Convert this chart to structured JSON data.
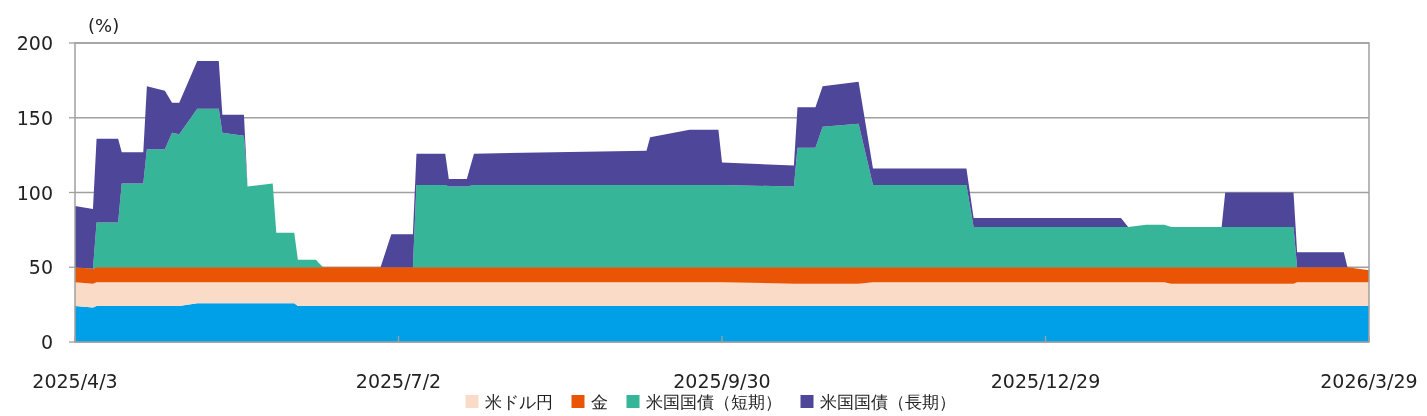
{
  "chart_data": {
    "type": "area",
    "stacked": true,
    "ylabel": "(%)",
    "grid": "y",
    "legend": "bottom",
    "xlim": [
      "2025-04-03",
      "2026-03-29"
    ],
    "xticks": [
      {
        "value": "2025-04-03",
        "label": "2025/4/3"
      },
      {
        "value": "2025-07-02",
        "label": "2025/7/2"
      },
      {
        "value": "2025-09-30",
        "label": "2025/9/30"
      },
      {
        "value": "2025-12-29",
        "label": "2025/12/29"
      },
      {
        "value": "2026-03-29",
        "label": "2026/3/29"
      }
    ],
    "ylim": [
      0,
      200
    ],
    "yticks": [
      0,
      50,
      100,
      150,
      200
    ],
    "x": [
      "2025-04-03",
      "2025-04-08",
      "2025-04-09",
      "2025-04-15",
      "2025-04-16",
      "2025-04-22",
      "2025-04-23",
      "2025-04-28",
      "2025-04-30",
      "2025-05-02",
      "2025-05-07",
      "2025-05-13",
      "2025-05-14",
      "2025-05-20",
      "2025-05-21",
      "2025-05-28",
      "2025-05-29",
      "2025-06-03",
      "2025-06-04",
      "2025-06-09",
      "2025-06-11",
      "2025-06-27",
      "2025-06-30",
      "2025-07-06",
      "2025-07-07",
      "2025-07-15",
      "2025-07-16",
      "2025-07-21",
      "2025-07-23",
      "2025-09-09",
      "2025-09-10",
      "2025-09-21",
      "2025-09-29",
      "2025-09-30",
      "2025-10-20",
      "2025-10-21",
      "2025-10-26",
      "2025-10-28",
      "2025-11-07",
      "2025-11-11",
      "2025-12-07",
      "2025-12-09",
      "2026-01-19",
      "2026-01-21",
      "2026-01-26",
      "2026-01-31",
      "2026-02-02",
      "2026-02-16",
      "2026-02-17",
      "2026-03-08",
      "2026-03-09",
      "2026-03-22",
      "2026-03-23",
      "2026-03-29"
    ],
    "series": [
      {
        "color": "#00a0e9",
        "values": [
          24,
          23,
          24,
          24,
          24,
          24,
          24,
          24,
          24,
          24,
          26,
          26,
          26,
          26,
          26,
          26,
          26,
          26,
          24,
          24,
          24,
          24,
          24,
          24,
          24,
          24,
          24,
          24,
          24,
          24,
          24,
          24,
          24,
          24,
          24,
          24,
          24,
          24,
          24,
          24,
          24,
          24,
          24,
          24,
          24,
          24,
          24,
          24,
          24,
          24,
          24,
          24,
          24,
          24
        ]
      },
      {
        "name": "米ドル円",
        "color": "#fadbc8",
        "values": [
          16,
          16,
          16,
          16,
          16,
          16,
          16,
          16,
          16,
          16,
          14,
          14,
          14,
          14,
          14,
          14,
          14,
          14,
          16,
          16,
          16,
          16,
          16,
          16,
          16,
          16,
          16,
          16,
          16,
          16,
          16,
          16,
          16,
          16,
          15,
          15,
          15,
          15,
          15,
          16,
          16,
          16,
          16,
          16,
          16,
          16,
          15,
          15,
          15,
          15,
          16,
          16,
          16,
          16
        ]
      },
      {
        "name": "金",
        "color": "#e95504",
        "values": [
          10,
          10,
          10,
          10,
          10,
          10,
          10,
          10,
          10,
          10,
          10,
          10,
          10,
          10,
          10,
          10,
          10,
          10,
          10,
          10,
          10,
          10,
          10,
          10,
          10,
          10,
          10,
          10,
          10,
          10,
          10,
          10,
          10,
          10,
          11,
          11,
          11,
          11,
          11,
          10,
          10,
          10,
          10,
          10,
          10,
          10,
          11,
          11,
          11,
          11,
          10,
          10,
          10,
          8
        ]
      },
      {
        "name": "米国国債（短期）",
        "color": "#36b598",
        "values": [
          0,
          0,
          30,
          30,
          56,
          56,
          79,
          79,
          90,
          89,
          106,
          106,
          90,
          88,
          54,
          56,
          23,
          23,
          5,
          5,
          0,
          0,
          0,
          0,
          55,
          55,
          54,
          54,
          55,
          55,
          55,
          55,
          55,
          55,
          54,
          80,
          80,
          94,
          96,
          55,
          55,
          27,
          27,
          27,
          28.5,
          28.5,
          27,
          27,
          27,
          27,
          0,
          0,
          0,
          0
        ]
      },
      {
        "name": "米国国債（長期）",
        "color": "#4e4699",
        "values": [
          41,
          40,
          56,
          56,
          21,
          21,
          42,
          39,
          20,
          21,
          32,
          32,
          12,
          14,
          0,
          0,
          0,
          0,
          0,
          0,
          0,
          0,
          22,
          22,
          21,
          21,
          5,
          5,
          21,
          23,
          32,
          37,
          37,
          15,
          14,
          27,
          27,
          27,
          28,
          11,
          11,
          6,
          6,
          0,
          0,
          0,
          0,
          0,
          23,
          23,
          10,
          10,
          0,
          0
        ]
      }
    ]
  }
}
